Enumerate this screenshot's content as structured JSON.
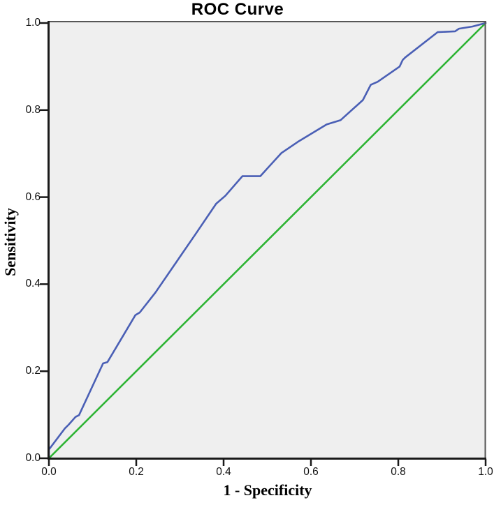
{
  "chart_data": {
    "type": "line",
    "title": "ROC Curve",
    "xlabel": "1 - Specificity",
    "ylabel": "Sensitivity",
    "xlim": [
      0.0,
      1.0
    ],
    "ylim": [
      0.0,
      1.0
    ],
    "xticks": [
      "0.0",
      "0.2",
      "0.4",
      "0.6",
      "0.8",
      "1.0"
    ],
    "yticks": [
      "0.0",
      "0.2",
      "0.4",
      "0.6",
      "0.8",
      "1.0"
    ],
    "grid": false,
    "legend": "none",
    "plot_background": "#efefef",
    "axis_color": "#1a1a1a",
    "frame_color": "#565656",
    "tick_color": "#1a1a1a",
    "series": [
      {
        "name": "ROC curve",
        "color": "#4a5fb5",
        "points": [
          [
            0.0,
            0.0
          ],
          [
            0.0,
            0.02
          ],
          [
            0.037,
            0.069
          ],
          [
            0.045,
            0.077
          ],
          [
            0.061,
            0.095
          ],
          [
            0.069,
            0.099
          ],
          [
            0.124,
            0.218
          ],
          [
            0.134,
            0.221
          ],
          [
            0.198,
            0.329
          ],
          [
            0.208,
            0.335
          ],
          [
            0.244,
            0.381
          ],
          [
            0.335,
            0.514
          ],
          [
            0.383,
            0.585
          ],
          [
            0.404,
            0.603
          ],
          [
            0.443,
            0.648
          ],
          [
            0.484,
            0.648
          ],
          [
            0.532,
            0.701
          ],
          [
            0.57,
            0.727
          ],
          [
            0.636,
            0.767
          ],
          [
            0.668,
            0.777
          ],
          [
            0.719,
            0.823
          ],
          [
            0.737,
            0.858
          ],
          [
            0.753,
            0.865
          ],
          [
            0.803,
            0.9
          ],
          [
            0.81,
            0.915
          ],
          [
            0.816,
            0.921
          ],
          [
            0.89,
            0.979
          ],
          [
            0.93,
            0.981
          ],
          [
            0.939,
            0.987
          ],
          [
            0.97,
            0.992
          ],
          [
            1.0,
            1.0
          ]
        ]
      },
      {
        "name": "Reference line",
        "color": "#2eb434",
        "points": [
          [
            0.0,
            0.0
          ],
          [
            1.0,
            1.0
          ]
        ]
      }
    ]
  }
}
